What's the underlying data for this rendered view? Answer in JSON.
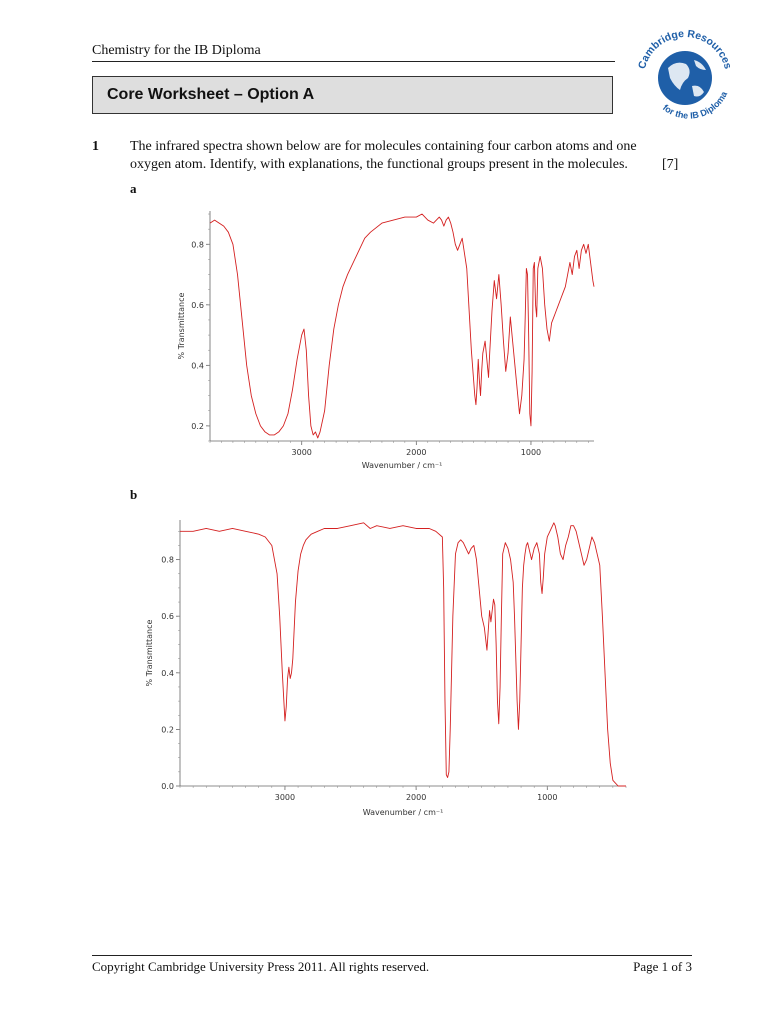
{
  "header": {
    "book_title": "Chemistry for the IB Diploma"
  },
  "logo": {
    "top_text": "Cambridge Resources",
    "bottom_text": "for the IB Diploma",
    "color": "#1f5fa8"
  },
  "worksheet": {
    "title": "Core Worksheet – Option A"
  },
  "question": {
    "number": "1",
    "line1": "The infrared spectra shown below are for molecules containing four carbon atoms and one",
    "line2": "oxygen atom. Identify, with explanations, the functional groups present in the molecules.",
    "marks": "[7]"
  },
  "chart_data": [
    {
      "type": "line",
      "part_label": "a",
      "xlabel": "Wavenumber / cm⁻¹",
      "ylabel": "% Transmittance",
      "xlim": [
        3800,
        450
      ],
      "ylim": [
        0.15,
        0.91
      ],
      "x_ticks": [
        3000,
        2000,
        1000
      ],
      "x_tick_labels": [
        "3000",
        "2000",
        "1000"
      ],
      "y_ticks": [
        0.2,
        0.4,
        0.6,
        0.8
      ],
      "y_tick_labels": [
        "0.2",
        "0.4",
        "0.6",
        "0.8"
      ],
      "line_color": "#d42020",
      "series": [
        {
          "name": "spectrum a",
          "x": [
            3800,
            3760,
            3720,
            3680,
            3640,
            3600,
            3560,
            3520,
            3480,
            3440,
            3400,
            3360,
            3320,
            3280,
            3240,
            3200,
            3160,
            3120,
            3080,
            3040,
            3000,
            2980,
            2960,
            2940,
            2920,
            2900,
            2880,
            2860,
            2840,
            2800,
            2760,
            2720,
            2680,
            2640,
            2600,
            2550,
            2500,
            2450,
            2400,
            2300,
            2200,
            2100,
            2000,
            1950,
            1900,
            1850,
            1800,
            1780,
            1760,
            1740,
            1720,
            1700,
            1680,
            1660,
            1640,
            1620,
            1600,
            1560,
            1520,
            1490,
            1480,
            1470,
            1460,
            1450,
            1440,
            1430,
            1420,
            1400,
            1380,
            1370,
            1360,
            1340,
            1320,
            1300,
            1280,
            1260,
            1240,
            1220,
            1200,
            1180,
            1160,
            1140,
            1120,
            1100,
            1080,
            1060,
            1050,
            1040,
            1030,
            1020,
            1010,
            1000,
            990,
            980,
            970,
            960,
            950,
            940,
            920,
            900,
            880,
            860,
            840,
            820,
            800,
            780,
            760,
            740,
            720,
            700,
            680,
            660,
            640,
            620,
            600,
            580,
            560,
            540,
            520,
            500,
            480,
            460,
            450
          ],
          "y": [
            0.87,
            0.88,
            0.87,
            0.86,
            0.84,
            0.8,
            0.7,
            0.55,
            0.4,
            0.3,
            0.24,
            0.2,
            0.18,
            0.17,
            0.17,
            0.18,
            0.2,
            0.24,
            0.32,
            0.42,
            0.5,
            0.52,
            0.45,
            0.3,
            0.2,
            0.17,
            0.18,
            0.16,
            0.18,
            0.25,
            0.4,
            0.52,
            0.6,
            0.66,
            0.7,
            0.74,
            0.78,
            0.82,
            0.84,
            0.87,
            0.88,
            0.89,
            0.89,
            0.9,
            0.88,
            0.87,
            0.89,
            0.88,
            0.86,
            0.88,
            0.89,
            0.87,
            0.84,
            0.8,
            0.78,
            0.8,
            0.82,
            0.72,
            0.45,
            0.3,
            0.27,
            0.33,
            0.42,
            0.35,
            0.3,
            0.38,
            0.44,
            0.48,
            0.4,
            0.36,
            0.44,
            0.58,
            0.68,
            0.62,
            0.7,
            0.6,
            0.48,
            0.38,
            0.44,
            0.56,
            0.48,
            0.4,
            0.32,
            0.24,
            0.3,
            0.42,
            0.56,
            0.72,
            0.7,
            0.5,
            0.24,
            0.2,
            0.38,
            0.72,
            0.74,
            0.6,
            0.56,
            0.72,
            0.76,
            0.72,
            0.6,
            0.52,
            0.48,
            0.54,
            0.56,
            0.58,
            0.6,
            0.62,
            0.64,
            0.66,
            0.7,
            0.74,
            0.7,
            0.76,
            0.78,
            0.72,
            0.78,
            0.8,
            0.77,
            0.8,
            0.74,
            0.68,
            0.66
          ]
        }
      ]
    },
    {
      "type": "line",
      "part_label": "b",
      "xlabel": "Wavenumber / cm⁻¹",
      "ylabel": "% Transmittance",
      "xlim": [
        3800,
        400
      ],
      "ylim": [
        0.0,
        0.94
      ],
      "x_ticks": [
        3000,
        2000,
        1000
      ],
      "x_tick_labels": [
        "3000",
        "2000",
        "1000"
      ],
      "y_ticks": [
        0.0,
        0.2,
        0.4,
        0.6,
        0.8
      ],
      "y_tick_labels": [
        "0.0",
        "0.2",
        "0.4",
        "0.6",
        "0.8"
      ],
      "line_color": "#d42020",
      "series": [
        {
          "name": "spectrum b",
          "x": [
            3800,
            3700,
            3600,
            3500,
            3400,
            3300,
            3200,
            3150,
            3100,
            3060,
            3040,
            3020,
            3000,
            2990,
            2980,
            2970,
            2960,
            2950,
            2940,
            2930,
            2920,
            2900,
            2880,
            2860,
            2840,
            2820,
            2800,
            2750,
            2700,
            2600,
            2500,
            2400,
            2350,
            2300,
            2200,
            2100,
            2000,
            1900,
            1850,
            1800,
            1790,
            1780,
            1770,
            1760,
            1750,
            1740,
            1720,
            1700,
            1680,
            1660,
            1640,
            1620,
            1600,
            1580,
            1560,
            1540,
            1520,
            1500,
            1480,
            1470,
            1460,
            1450,
            1440,
            1430,
            1420,
            1410,
            1400,
            1390,
            1380,
            1370,
            1360,
            1350,
            1340,
            1320,
            1300,
            1280,
            1260,
            1250,
            1240,
            1230,
            1220,
            1210,
            1200,
            1190,
            1180,
            1170,
            1160,
            1150,
            1140,
            1120,
            1100,
            1080,
            1060,
            1050,
            1040,
            1030,
            1020,
            1000,
            980,
            960,
            950,
            940,
            920,
            900,
            880,
            860,
            840,
            820,
            800,
            780,
            760,
            740,
            720,
            700,
            680,
            660,
            640,
            620,
            600,
            580,
            560,
            540,
            520,
            500,
            480,
            460,
            440,
            420,
            400
          ],
          "y": [
            0.9,
            0.9,
            0.91,
            0.9,
            0.91,
            0.9,
            0.89,
            0.88,
            0.85,
            0.75,
            0.6,
            0.4,
            0.23,
            0.28,
            0.38,
            0.42,
            0.38,
            0.4,
            0.45,
            0.55,
            0.65,
            0.76,
            0.82,
            0.85,
            0.87,
            0.88,
            0.89,
            0.9,
            0.91,
            0.91,
            0.92,
            0.93,
            0.91,
            0.92,
            0.91,
            0.92,
            0.91,
            0.91,
            0.9,
            0.88,
            0.7,
            0.3,
            0.04,
            0.03,
            0.05,
            0.2,
            0.6,
            0.82,
            0.86,
            0.87,
            0.86,
            0.84,
            0.82,
            0.84,
            0.85,
            0.8,
            0.7,
            0.6,
            0.56,
            0.52,
            0.48,
            0.55,
            0.62,
            0.58,
            0.62,
            0.66,
            0.64,
            0.5,
            0.3,
            0.22,
            0.35,
            0.6,
            0.82,
            0.86,
            0.84,
            0.8,
            0.72,
            0.6,
            0.45,
            0.3,
            0.2,
            0.3,
            0.5,
            0.7,
            0.78,
            0.82,
            0.85,
            0.86,
            0.84,
            0.8,
            0.84,
            0.86,
            0.82,
            0.72,
            0.68,
            0.74,
            0.82,
            0.88,
            0.9,
            0.92,
            0.93,
            0.92,
            0.88,
            0.82,
            0.8,
            0.85,
            0.88,
            0.92,
            0.92,
            0.9,
            0.86,
            0.82,
            0.78,
            0.8,
            0.84,
            0.88,
            0.86,
            0.82,
            0.78,
            0.6,
            0.4,
            0.2,
            0.08,
            0.02,
            0.01,
            0.0,
            0.0,
            0.0,
            0.0
          ]
        }
      ]
    }
  ],
  "footer": {
    "copyright": "Copyright Cambridge University Press 2011. All rights reserved.",
    "page": "Page 1 of 3"
  }
}
